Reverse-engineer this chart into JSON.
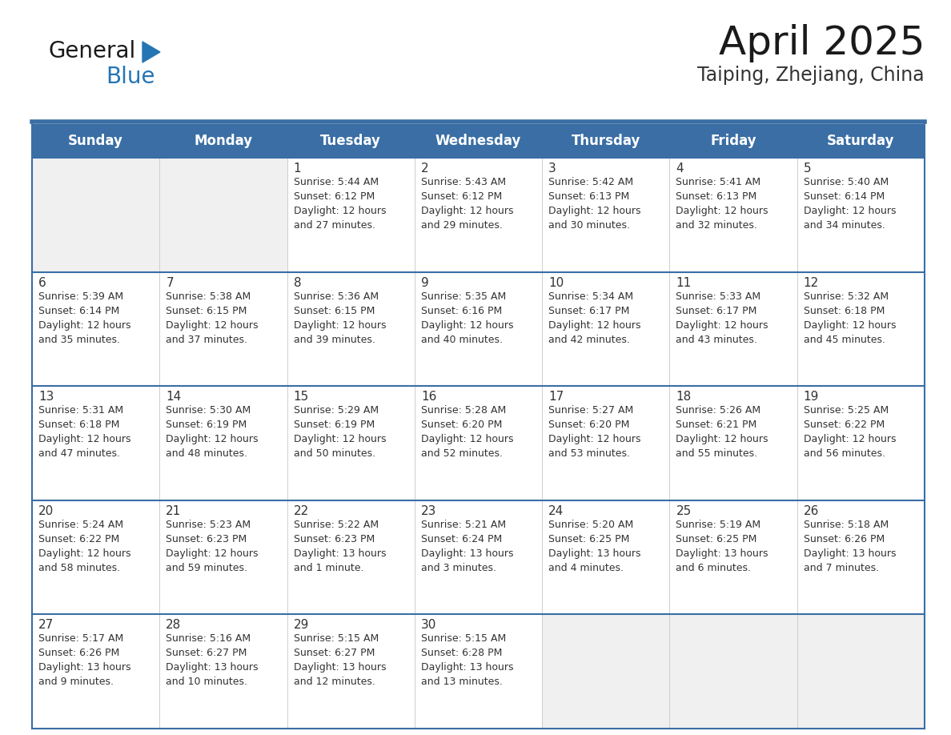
{
  "title": "April 2025",
  "subtitle": "Taiping, Zhejiang, China",
  "header_bg_color": "#3a6ea5",
  "header_text_color": "#ffffff",
  "cell_bg_color_white": "#ffffff",
  "cell_bg_color_gray": "#f0f0f0",
  "border_color_blue": "#3a6ea5",
  "border_color_light": "#cccccc",
  "text_color": "#333333",
  "days_of_week": [
    "Sunday",
    "Monday",
    "Tuesday",
    "Wednesday",
    "Thursday",
    "Friday",
    "Saturday"
  ],
  "calendar_data": [
    [
      {
        "day": "",
        "info": ""
      },
      {
        "day": "",
        "info": ""
      },
      {
        "day": "1",
        "info": "Sunrise: 5:44 AM\nSunset: 6:12 PM\nDaylight: 12 hours\nand 27 minutes."
      },
      {
        "day": "2",
        "info": "Sunrise: 5:43 AM\nSunset: 6:12 PM\nDaylight: 12 hours\nand 29 minutes."
      },
      {
        "day": "3",
        "info": "Sunrise: 5:42 AM\nSunset: 6:13 PM\nDaylight: 12 hours\nand 30 minutes."
      },
      {
        "day": "4",
        "info": "Sunrise: 5:41 AM\nSunset: 6:13 PM\nDaylight: 12 hours\nand 32 minutes."
      },
      {
        "day": "5",
        "info": "Sunrise: 5:40 AM\nSunset: 6:14 PM\nDaylight: 12 hours\nand 34 minutes."
      }
    ],
    [
      {
        "day": "6",
        "info": "Sunrise: 5:39 AM\nSunset: 6:14 PM\nDaylight: 12 hours\nand 35 minutes."
      },
      {
        "day": "7",
        "info": "Sunrise: 5:38 AM\nSunset: 6:15 PM\nDaylight: 12 hours\nand 37 minutes."
      },
      {
        "day": "8",
        "info": "Sunrise: 5:36 AM\nSunset: 6:15 PM\nDaylight: 12 hours\nand 39 minutes."
      },
      {
        "day": "9",
        "info": "Sunrise: 5:35 AM\nSunset: 6:16 PM\nDaylight: 12 hours\nand 40 minutes."
      },
      {
        "day": "10",
        "info": "Sunrise: 5:34 AM\nSunset: 6:17 PM\nDaylight: 12 hours\nand 42 minutes."
      },
      {
        "day": "11",
        "info": "Sunrise: 5:33 AM\nSunset: 6:17 PM\nDaylight: 12 hours\nand 43 minutes."
      },
      {
        "day": "12",
        "info": "Sunrise: 5:32 AM\nSunset: 6:18 PM\nDaylight: 12 hours\nand 45 minutes."
      }
    ],
    [
      {
        "day": "13",
        "info": "Sunrise: 5:31 AM\nSunset: 6:18 PM\nDaylight: 12 hours\nand 47 minutes."
      },
      {
        "day": "14",
        "info": "Sunrise: 5:30 AM\nSunset: 6:19 PM\nDaylight: 12 hours\nand 48 minutes."
      },
      {
        "day": "15",
        "info": "Sunrise: 5:29 AM\nSunset: 6:19 PM\nDaylight: 12 hours\nand 50 minutes."
      },
      {
        "day": "16",
        "info": "Sunrise: 5:28 AM\nSunset: 6:20 PM\nDaylight: 12 hours\nand 52 minutes."
      },
      {
        "day": "17",
        "info": "Sunrise: 5:27 AM\nSunset: 6:20 PM\nDaylight: 12 hours\nand 53 minutes."
      },
      {
        "day": "18",
        "info": "Sunrise: 5:26 AM\nSunset: 6:21 PM\nDaylight: 12 hours\nand 55 minutes."
      },
      {
        "day": "19",
        "info": "Sunrise: 5:25 AM\nSunset: 6:22 PM\nDaylight: 12 hours\nand 56 minutes."
      }
    ],
    [
      {
        "day": "20",
        "info": "Sunrise: 5:24 AM\nSunset: 6:22 PM\nDaylight: 12 hours\nand 58 minutes."
      },
      {
        "day": "21",
        "info": "Sunrise: 5:23 AM\nSunset: 6:23 PM\nDaylight: 12 hours\nand 59 minutes."
      },
      {
        "day": "22",
        "info": "Sunrise: 5:22 AM\nSunset: 6:23 PM\nDaylight: 13 hours\nand 1 minute."
      },
      {
        "day": "23",
        "info": "Sunrise: 5:21 AM\nSunset: 6:24 PM\nDaylight: 13 hours\nand 3 minutes."
      },
      {
        "day": "24",
        "info": "Sunrise: 5:20 AM\nSunset: 6:25 PM\nDaylight: 13 hours\nand 4 minutes."
      },
      {
        "day": "25",
        "info": "Sunrise: 5:19 AM\nSunset: 6:25 PM\nDaylight: 13 hours\nand 6 minutes."
      },
      {
        "day": "26",
        "info": "Sunrise: 5:18 AM\nSunset: 6:26 PM\nDaylight: 13 hours\nand 7 minutes."
      }
    ],
    [
      {
        "day": "27",
        "info": "Sunrise: 5:17 AM\nSunset: 6:26 PM\nDaylight: 13 hours\nand 9 minutes."
      },
      {
        "day": "28",
        "info": "Sunrise: 5:16 AM\nSunset: 6:27 PM\nDaylight: 13 hours\nand 10 minutes."
      },
      {
        "day": "29",
        "info": "Sunrise: 5:15 AM\nSunset: 6:27 PM\nDaylight: 13 hours\nand 12 minutes."
      },
      {
        "day": "30",
        "info": "Sunrise: 5:15 AM\nSunset: 6:28 PM\nDaylight: 13 hours\nand 13 minutes."
      },
      {
        "day": "",
        "info": ""
      },
      {
        "day": "",
        "info": ""
      },
      {
        "day": "",
        "info": ""
      }
    ]
  ],
  "logo_general_color": "#1a1a1a",
  "logo_blue_color": "#2475b4",
  "logo_triangle_color": "#2475b4",
  "title_fontsize": 36,
  "subtitle_fontsize": 17,
  "header_fontsize": 12,
  "day_num_fontsize": 11,
  "cell_text_fontsize": 9
}
